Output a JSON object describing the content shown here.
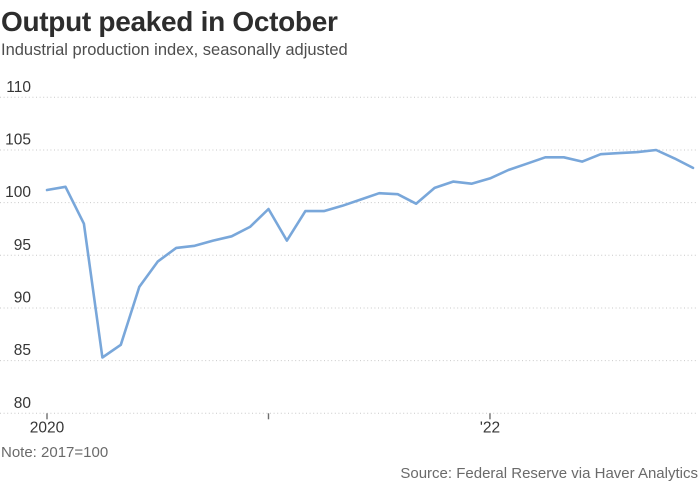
{
  "header": {
    "title": "Output peaked in October",
    "subtitle": "Industrial production index, seasonally adjusted"
  },
  "footer": {
    "note": "Note: 2017=100",
    "source": "Source: Federal Reserve via Haver Analytics"
  },
  "chart_data": {
    "type": "line",
    "title": "Output peaked in October",
    "subtitle": "Industrial production index, seasonally adjusted",
    "unit_note": "2017=100",
    "legend_position": "none",
    "grid": true,
    "ylim": [
      80,
      110
    ],
    "yticks": [
      80,
      85,
      90,
      95,
      100,
      105,
      110
    ],
    "xticks": [
      {
        "month_index": 0,
        "label": "2020"
      },
      {
        "month_index": 12,
        "label": ""
      },
      {
        "month_index": 24,
        "label": "'22"
      }
    ],
    "x": [
      "Jan 2020",
      "Feb 2020",
      "Mar 2020",
      "Apr 2020",
      "May 2020",
      "Jun 2020",
      "Jul 2020",
      "Aug 2020",
      "Sep 2020",
      "Oct 2020",
      "Nov 2020",
      "Dec 2020",
      "Jan 2021",
      "Feb 2021",
      "Mar 2021",
      "Apr 2021",
      "May 2021",
      "Jun 2021",
      "Jul 2021",
      "Aug 2021",
      "Sep 2021",
      "Oct 2021",
      "Nov 2021",
      "Dec 2021",
      "Jan 2022",
      "Feb 2022",
      "Mar 2022",
      "Apr 2022",
      "May 2022",
      "Jun 2022",
      "Jul 2022",
      "Aug 2022",
      "Sep 2022",
      "Oct 2022",
      "Nov 2022",
      "Dec 2022"
    ],
    "series": [
      {
        "name": "Industrial production index (seasonally adjusted)",
        "values": [
          101.2,
          101.5,
          98.0,
          85.3,
          86.5,
          92.0,
          94.4,
          95.7,
          95.9,
          96.4,
          96.8,
          97.7,
          99.4,
          96.4,
          99.2,
          99.2,
          99.7,
          100.3,
          100.9,
          100.8,
          99.9,
          101.4,
          102.0,
          101.8,
          102.3,
          103.1,
          103.7,
          104.3,
          104.3,
          103.9,
          104.6,
          104.7,
          104.8,
          105.0,
          104.2,
          103.3
        ]
      }
    ],
    "colors": {
      "line": "#79a7da",
      "grid": "#c9c9c9",
      "tick": "#6e6e6e",
      "axis_text": "#363636",
      "background": "#ffffff"
    }
  }
}
